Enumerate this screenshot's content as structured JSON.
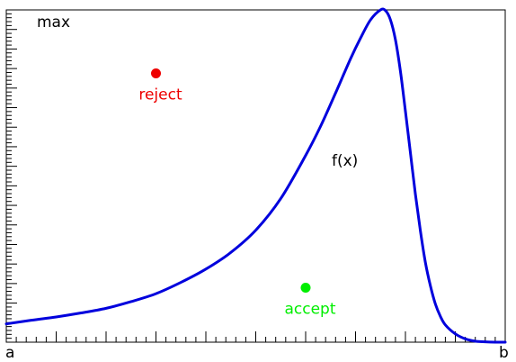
{
  "chart_data": {
    "type": "line",
    "title": "",
    "xlabel": "",
    "ylabel": "",
    "xlim": [
      0,
      1
    ],
    "ylim": [
      0,
      1
    ],
    "grid": false,
    "axis_labels": {
      "x_min": "a",
      "x_max": "b",
      "y_max": "max"
    },
    "series": [
      {
        "name": "f(x)",
        "color": "#0000dd",
        "x": [
          0.0,
          0.05,
          0.1,
          0.15,
          0.2,
          0.25,
          0.3,
          0.35,
          0.4,
          0.45,
          0.5,
          0.55,
          0.6,
          0.63,
          0.66,
          0.69,
          0.71,
          0.73,
          0.75,
          0.76,
          0.77,
          0.78,
          0.79,
          0.8,
          0.81,
          0.82,
          0.83,
          0.84,
          0.85,
          0.86,
          0.87,
          0.88,
          0.9,
          0.92,
          0.94,
          0.96,
          0.98,
          1.0
        ],
        "y": [
          0.055,
          0.066,
          0.076,
          0.088,
          0.102,
          0.122,
          0.146,
          0.18,
          0.22,
          0.27,
          0.337,
          0.432,
          0.562,
          0.65,
          0.75,
          0.853,
          0.915,
          0.97,
          1.0,
          0.998,
          0.97,
          0.91,
          0.815,
          0.695,
          0.57,
          0.445,
          0.335,
          0.24,
          0.17,
          0.115,
          0.078,
          0.052,
          0.025,
          0.01,
          0.003,
          0.001,
          0.0,
          0.0
        ]
      }
    ],
    "points": [
      {
        "label": "reject",
        "x": 0.3,
        "y": 0.809,
        "color": "#ee0000"
      },
      {
        "label": "accept",
        "x": 0.6,
        "y": 0.164,
        "color": "#00ee00"
      }
    ]
  }
}
